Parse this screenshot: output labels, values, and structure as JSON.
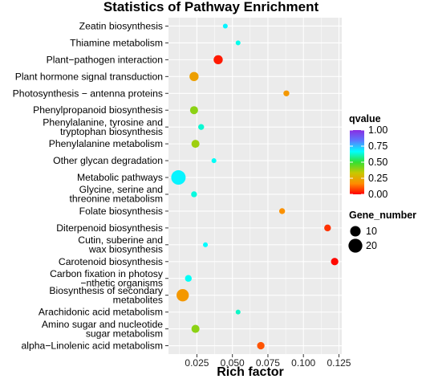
{
  "chart_data": {
    "type": "scatter",
    "title": "Statistics of Pathway Enrichment",
    "xlabel": "Rich factor",
    "ylabel": "",
    "xlim": [
      0.005,
      0.127
    ],
    "xticks": [
      "0.025",
      "0.050",
      "0.075",
      "0.100",
      "0.125"
    ],
    "xtick_values": [
      0.025,
      0.05,
      0.075,
      0.1,
      0.125
    ],
    "grid": true,
    "categories": [
      "Zeatin biosynthesis",
      "Thiamine metabolism",
      "Plant−pathogen interaction",
      "Plant hormone signal transduction",
      "Photosynthesis − antenna proteins",
      "Phenylpropanoid biosynthesis",
      "Phenylalanine, tyrosine and\ntryptophan biosynthesis",
      "Phenylalanine metabolism",
      "Other glycan degradation",
      "Metabolic pathways",
      "Glycine, serine and\nthreonine metabolism",
      "Folate biosynthesis",
      "Diterpenoid biosynthesis",
      "Cutin, suberine and\nwax biosynthesis",
      "Carotenoid biosynthesis",
      "Carbon fixation in photosy\n−nthetic organisms",
      "Biosynthesis of secondary\nmetabolites",
      "Arachidonic acid metabolism",
      "Amino sugar and nucleotide\nsugar metabolism",
      "alpha−Linolenic acid metabolism"
    ],
    "points": [
      {
        "pathway": "Zeatin biosynthesis",
        "rich_factor": 0.045,
        "qvalue": 0.68,
        "gene_number": 1
      },
      {
        "pathway": "Thiamine metabolism",
        "rich_factor": 0.054,
        "qvalue": 0.65,
        "gene_number": 1
      },
      {
        "pathway": "Plant−pathogen interaction",
        "rich_factor": 0.04,
        "qvalue": 0.03,
        "gene_number": 7
      },
      {
        "pathway": "Plant hormone signal transduction",
        "rich_factor": 0.023,
        "qvalue": 0.22,
        "gene_number": 7
      },
      {
        "pathway": "Photosynthesis − antenna proteins",
        "rich_factor": 0.088,
        "qvalue": 0.2,
        "gene_number": 2
      },
      {
        "pathway": "Phenylpropanoid biosynthesis",
        "rich_factor": 0.023,
        "qvalue": 0.4,
        "gene_number": 5
      },
      {
        "pathway": "Phenylalanine, tyrosine and\ntryptophan biosynthesis",
        "rich_factor": 0.028,
        "qvalue": 0.63,
        "gene_number": 2
      },
      {
        "pathway": "Phenylalanine metabolism",
        "rich_factor": 0.024,
        "qvalue": 0.38,
        "gene_number": 5
      },
      {
        "pathway": "Other glycan degradation",
        "rich_factor": 0.037,
        "qvalue": 0.66,
        "gene_number": 1
      },
      {
        "pathway": "Metabolic pathways",
        "rich_factor": 0.012,
        "qvalue": 0.68,
        "gene_number": 22
      },
      {
        "pathway": "Glycine, serine and\nthreonine metabolism",
        "rich_factor": 0.023,
        "qvalue": 0.64,
        "gene_number": 2
      },
      {
        "pathway": "Folate biosynthesis",
        "rich_factor": 0.085,
        "qvalue": 0.18,
        "gene_number": 2
      },
      {
        "pathway": "Diterpenoid biosynthesis",
        "rich_factor": 0.117,
        "qvalue": 0.06,
        "gene_number": 3
      },
      {
        "pathway": "Cutin, suberine and\nwax biosynthesis",
        "rich_factor": 0.031,
        "qvalue": 0.67,
        "gene_number": 1
      },
      {
        "pathway": "Carotenoid biosynthesis",
        "rich_factor": 0.122,
        "qvalue": 0.01,
        "gene_number": 4
      },
      {
        "pathway": "Carbon fixation in photosy\n−nthetic organisms",
        "rich_factor": 0.019,
        "qvalue": 0.66,
        "gene_number": 3
      },
      {
        "pathway": "Biosynthesis of secondary\nmetabolites",
        "rich_factor": 0.015,
        "qvalue": 0.2,
        "gene_number": 15
      },
      {
        "pathway": "Arachidonic acid metabolism",
        "rich_factor": 0.054,
        "qvalue": 0.62,
        "gene_number": 1
      },
      {
        "pathway": "Amino sugar and nucleotide\nsugar metabolism",
        "rich_factor": 0.024,
        "qvalue": 0.4,
        "gene_number": 5
      },
      {
        "pathway": "alpha−Linolenic acid metabolism",
        "rich_factor": 0.07,
        "qvalue": 0.1,
        "gene_number": 4
      }
    ],
    "legend": {
      "color_title": "qvalue",
      "color_ticks": [
        "1.00",
        "0.75",
        "0.50",
        "0.25",
        "0.00"
      ],
      "color_tick_values": [
        1.0,
        0.75,
        0.5,
        0.25,
        0.0
      ],
      "color_range": [
        0,
        1
      ],
      "color_stops": [
        "#FF0000",
        "#FF8C00",
        "#C8C800",
        "#32E032",
        "#00FFFF",
        "#5A7AFF",
        "#8A2BE2"
      ],
      "size_title": "Gene_number",
      "size_ticks": [
        "10",
        "20"
      ],
      "size_tick_values": [
        10,
        20
      ],
      "placement": "right"
    },
    "colors": {
      "panel_background": "#EBEBEB",
      "grid": "#FFFFFF"
    }
  }
}
